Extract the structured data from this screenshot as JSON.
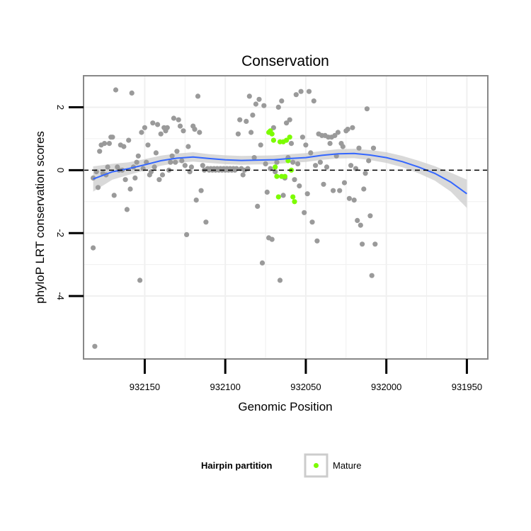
{
  "chart_data": {
    "type": "scatter",
    "title": "Conservation",
    "xlabel": "Genomic Position",
    "ylabel": "phyloP LRT conservation scores",
    "x_reversed": true,
    "xlim": [
      932188,
      931937
    ],
    "ylim": [
      -6.0,
      3.0
    ],
    "x_ticks": [
      932150,
      932100,
      932050,
      932000,
      931950
    ],
    "x_tick_labels": [
      "932150",
      "932100",
      "932050",
      "932000",
      "931950"
    ],
    "y_ticks": [
      -4,
      -2,
      0,
      2
    ],
    "y_tick_labels": [
      "-4",
      "-2",
      "0",
      "2"
    ],
    "grid": true,
    "reference_line": {
      "y": 0,
      "style": "dashed"
    },
    "legend": {
      "title": "Hairpin partition",
      "position": "bottom",
      "entries": [
        {
          "label": "Mature",
          "color": "#7CFC00"
        }
      ]
    },
    "colors": {
      "background": "#ffffff",
      "panel_border": "#888888",
      "grid": "#f0f0f0",
      "other": "#9a9a9a",
      "mature": "#7CFC00",
      "smooth": "#3366ff",
      "ribbon": "#cccccc"
    },
    "series": [
      {
        "partition": "other",
        "points": [
          [
            932182,
            -2.47
          ],
          [
            932182,
            -0.25
          ],
          [
            932181,
            -5.6
          ],
          [
            932180,
            -0.05
          ],
          [
            932179,
            -0.55
          ],
          [
            932178,
            0.6
          ],
          [
            932177,
            0.8
          ],
          [
            932176,
            -0.1
          ],
          [
            932175,
            0.85
          ],
          [
            932174,
            -0.15
          ],
          [
            932173,
            0.1
          ],
          [
            932172,
            0.85
          ],
          [
            932171,
            1.05
          ],
          [
            932170,
            1.05
          ],
          [
            932169,
            -0.8
          ],
          [
            932168,
            2.55
          ],
          [
            932167,
            0.1
          ],
          [
            932166,
            0.0
          ],
          [
            932165,
            0.8
          ],
          [
            932164,
            0.0
          ],
          [
            932163,
            0.75
          ],
          [
            932162,
            -0.3
          ],
          [
            932161,
            -1.25
          ],
          [
            932160,
            0.95
          ],
          [
            932159,
            -0.6
          ],
          [
            932158,
            2.45
          ],
          [
            932157,
            0.1
          ],
          [
            932156,
            -0.25
          ],
          [
            932155,
            0.25
          ],
          [
            932154,
            0.45
          ],
          [
            932153,
            -3.5
          ],
          [
            932152,
            1.2
          ],
          [
            932151,
            0.05
          ],
          [
            932150,
            1.35
          ],
          [
            932149,
            0.25
          ],
          [
            932148,
            0.8
          ],
          [
            932147,
            -0.15
          ],
          [
            932146,
            -0.05
          ],
          [
            932145,
            1.5
          ],
          [
            932144,
            0.1
          ],
          [
            932143,
            0.55
          ],
          [
            932142,
            1.45
          ],
          [
            932141,
            -0.3
          ],
          [
            932140,
            1.15
          ],
          [
            932139,
            -0.15
          ],
          [
            932138,
            1.35
          ],
          [
            932137,
            1.25
          ],
          [
            932136,
            1.35
          ],
          [
            932135,
            0.0
          ],
          [
            932134,
            0.25
          ],
          [
            932133,
            0.45
          ],
          [
            932132,
            1.65
          ],
          [
            932131,
            0.25
          ],
          [
            932130,
            0.6
          ],
          [
            932129,
            1.6
          ],
          [
            932128,
            1.4
          ],
          [
            932127,
            0.3
          ],
          [
            932126,
            1.25
          ],
          [
            932125,
            0.15
          ],
          [
            932124,
            -2.05
          ],
          [
            932123,
            0.75
          ],
          [
            932122,
            -0.05
          ],
          [
            932121,
            0.1
          ],
          [
            932120,
            1.4
          ],
          [
            932119,
            1.3
          ],
          [
            932118,
            -0.95
          ],
          [
            932117,
            2.35
          ],
          [
            932116,
            1.2
          ],
          [
            932115,
            -0.65
          ],
          [
            932114,
            0.15
          ],
          [
            932113,
            0.0
          ],
          [
            932112,
            -1.65
          ],
          [
            932111,
            0.05
          ],
          [
            932110,
            0.0
          ],
          [
            932109,
            0.05
          ],
          [
            932108,
            0.0
          ],
          [
            932107,
            0.05
          ],
          [
            932106,
            0.0
          ],
          [
            932105,
            0.05
          ],
          [
            932104,
            0.0
          ],
          [
            932103,
            0.05
          ],
          [
            932102,
            0.0
          ],
          [
            932101,
            0.05
          ],
          [
            932100,
            0.0
          ],
          [
            932099,
            0.05
          ],
          [
            932098,
            0.0
          ],
          [
            932097,
            0.05
          ],
          [
            932096,
            0.0
          ],
          [
            932095,
            0.05
          ],
          [
            932094,
            0.0
          ],
          [
            932093,
            0.05
          ],
          [
            932092,
            1.15
          ],
          [
            932091,
            1.6
          ],
          [
            932090,
            0.05
          ],
          [
            932089,
            -0.15
          ],
          [
            932088,
            0.0
          ],
          [
            932087,
            1.55
          ],
          [
            932086,
            0.05
          ],
          [
            932085,
            2.35
          ],
          [
            932084,
            1.2
          ],
          [
            932083,
            1.75
          ],
          [
            932082,
            0.4
          ],
          [
            932081,
            2.1
          ],
          [
            932080,
            -1.15
          ],
          [
            932079,
            2.25
          ],
          [
            932078,
            0.8
          ],
          [
            932077,
            -2.95
          ],
          [
            932076,
            2.05
          ],
          [
            932075,
            0.2
          ],
          [
            932074,
            -0.7
          ],
          [
            932073,
            -2.15
          ],
          [
            932072,
            0.05
          ],
          [
            932071,
            -2.2
          ],
          [
            932070,
            1.35
          ],
          [
            932069,
            -0.05
          ],
          [
            932068,
            0.25
          ],
          [
            932067,
            2.0
          ],
          [
            932066,
            -3.5
          ],
          [
            932065,
            2.2
          ],
          [
            932064,
            -0.8
          ],
          [
            932063,
            -0.25
          ],
          [
            932062,
            1.5
          ],
          [
            932061,
            0.4
          ],
          [
            932060,
            1.6
          ],
          [
            932059,
            0.85
          ],
          [
            932058,
            0.25
          ],
          [
            932057,
            -0.3
          ],
          [
            932056,
            2.4
          ],
          [
            932055,
            0.2
          ],
          [
            932054,
            -0.5
          ],
          [
            932053,
            2.5
          ],
          [
            932052,
            1.05
          ],
          [
            932051,
            -1.35
          ],
          [
            932050,
            0.8
          ],
          [
            932049,
            -0.75
          ],
          [
            932048,
            2.5
          ],
          [
            932047,
            0.55
          ],
          [
            932046,
            -1.65
          ],
          [
            932045,
            2.2
          ],
          [
            932044,
            0.15
          ],
          [
            932043,
            -2.25
          ],
          [
            932042,
            1.15
          ],
          [
            932041,
            0.25
          ],
          [
            932040,
            1.1
          ],
          [
            932039,
            -0.45
          ],
          [
            932038,
            1.1
          ],
          [
            932037,
            0.1
          ],
          [
            932036,
            1.05
          ],
          [
            932035,
            0.85
          ],
          [
            932034,
            1.05
          ],
          [
            932033,
            -0.65
          ],
          [
            932032,
            1.1
          ],
          [
            932031,
            0.45
          ],
          [
            932030,
            1.2
          ],
          [
            932029,
            -0.65
          ],
          [
            932028,
            0.85
          ],
          [
            932027,
            0.75
          ],
          [
            932026,
            -0.4
          ],
          [
            932025,
            1.25
          ],
          [
            932024,
            1.3
          ],
          [
            932023,
            -0.9
          ],
          [
            932022,
            0.15
          ],
          [
            932021,
            1.35
          ],
          [
            932020,
            -0.95
          ],
          [
            932019,
            0.05
          ],
          [
            932018,
            -1.6
          ],
          [
            932017,
            0.7
          ],
          [
            932016,
            -1.75
          ],
          [
            932015,
            -2.35
          ],
          [
            932014,
            -0.6
          ],
          [
            932013,
            -0.1
          ],
          [
            932012,
            1.95
          ],
          [
            932011,
            0.3
          ],
          [
            932010,
            -1.45
          ],
          [
            932009,
            -3.35
          ],
          [
            932008,
            0.7
          ],
          [
            932007,
            -2.35
          ]
        ]
      },
      {
        "partition": "Mature",
        "points": [
          [
            932073,
            1.2
          ],
          [
            932072,
            1.25
          ],
          [
            932071,
            1.15
          ],
          [
            932070,
            0.95
          ],
          [
            932069,
            0.1
          ],
          [
            932068,
            -0.2
          ],
          [
            932067,
            -0.85
          ],
          [
            932066,
            0.9
          ],
          [
            932065,
            -0.2
          ],
          [
            932064,
            0.9
          ],
          [
            932063,
            -0.2
          ],
          [
            932062,
            0.95
          ],
          [
            932061,
            0.3
          ],
          [
            932060,
            1.05
          ],
          [
            932059,
            0.0
          ],
          [
            932058,
            -0.85
          ],
          [
            932057,
            -1.0
          ]
        ]
      }
    ],
    "smooth": {
      "x": [
        932182,
        932170,
        932160,
        932150,
        932140,
        932130,
        932120,
        932110,
        932100,
        932090,
        932080,
        932070,
        932060,
        932050,
        932040,
        932030,
        932020,
        932010,
        932000,
        931990,
        931980,
        931970,
        931960,
        931950
      ],
      "y": [
        -0.28,
        -0.05,
        0.05,
        0.17,
        0.3,
        0.38,
        0.42,
        0.37,
        0.33,
        0.31,
        0.32,
        0.33,
        0.37,
        0.4,
        0.47,
        0.52,
        0.53,
        0.48,
        0.4,
        0.27,
        0.1,
        -0.1,
        -0.38,
        -0.75
      ],
      "ribbon_halfwidth": [
        0.4,
        0.25,
        0.2,
        0.18,
        0.16,
        0.15,
        0.15,
        0.14,
        0.14,
        0.14,
        0.14,
        0.14,
        0.14,
        0.14,
        0.14,
        0.15,
        0.15,
        0.16,
        0.17,
        0.18,
        0.2,
        0.23,
        0.3,
        0.45
      ]
    }
  }
}
